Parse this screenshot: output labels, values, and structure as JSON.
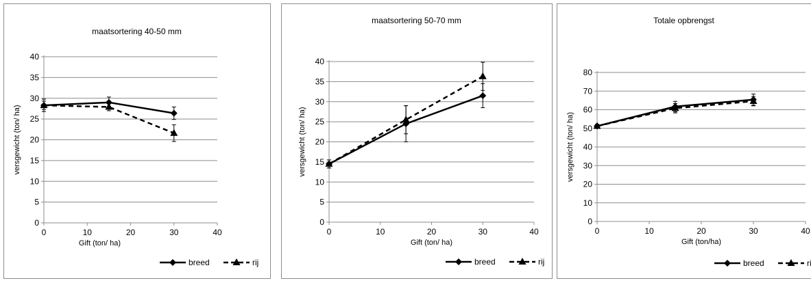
{
  "chart_data": [
    {
      "type": "line",
      "title": "maatsortering 40-50 mm",
      "xlabel": "Gift  (ton/ ha)",
      "ylabel": "versgewicht  (ton/ ha)",
      "xlim": [
        0,
        40
      ],
      "ylim": [
        0,
        40
      ],
      "xticks": [
        "0",
        "10",
        "20",
        "30",
        "40"
      ],
      "yticks": [
        "0",
        "5",
        "10",
        "15",
        "20",
        "25",
        "30",
        "35",
        "40"
      ],
      "grid": true,
      "legend_position": "bottom-right",
      "series": [
        {
          "name": "breed",
          "style": "solid",
          "marker": "diamond",
          "x": [
            0,
            15,
            30
          ],
          "y": [
            28.3,
            29.0,
            26.4
          ],
          "err": [
            1.5,
            1.3,
            1.5
          ]
        },
        {
          "name": "rij",
          "style": "dashed",
          "marker": "triangle",
          "x": [
            0,
            15,
            30
          ],
          "y": [
            28.3,
            27.9,
            21.6
          ],
          "err": [
            1.0,
            0.9,
            2.0
          ]
        }
      ]
    },
    {
      "type": "line",
      "title": "maatsortering 50-70 mm",
      "xlabel": "Gift  (ton/ ha)",
      "ylabel": "versgewicht  (ton/ ha)",
      "xlim": [
        0,
        40
      ],
      "ylim": [
        0,
        40
      ],
      "xticks": [
        "0",
        "10",
        "20",
        "30",
        "40"
      ],
      "yticks": [
        "0",
        "5",
        "10",
        "15",
        "20",
        "25",
        "30",
        "35",
        "40"
      ],
      "grid": true,
      "legend_position": "bottom-right",
      "series": [
        {
          "name": "breed",
          "style": "solid",
          "marker": "diamond",
          "x": [
            0,
            15,
            30
          ],
          "y": [
            14.5,
            24.5,
            31.5
          ],
          "err": [
            1.0,
            4.5,
            3.0
          ]
        },
        {
          "name": "rij",
          "style": "dashed",
          "marker": "triangle",
          "x": [
            0,
            15,
            30
          ],
          "y": [
            14.5,
            25.5,
            36.3
          ],
          "err": [
            1.0,
            3.5,
            3.5
          ]
        }
      ]
    },
    {
      "type": "line",
      "title": "Totale opbrengst",
      "xlabel": "Gift  (ton/ha)",
      "ylabel": "versgewicht  (ton/ ha)",
      "xlim": [
        0,
        40
      ],
      "ylim": [
        0,
        80
      ],
      "xticks": [
        "0",
        "10",
        "20",
        "30",
        "40"
      ],
      "yticks": [
        "0",
        "10",
        "20",
        "30",
        "40",
        "50",
        "60",
        "70",
        "80"
      ],
      "grid": true,
      "legend_position": "bottom-right",
      "series": [
        {
          "name": "breed",
          "style": "solid",
          "marker": "diamond",
          "x": [
            0,
            15,
            30
          ],
          "y": [
            51.2,
            61.7,
            65.4
          ],
          "err": [
            1.0,
            2.8,
            3.0
          ]
        },
        {
          "name": "rij",
          "style": "dashed",
          "marker": "triangle",
          "x": [
            0,
            15,
            30
          ],
          "y": [
            51.2,
            60.8,
            64.6
          ],
          "err": [
            1.0,
            2.5,
            2.5
          ]
        }
      ]
    }
  ]
}
